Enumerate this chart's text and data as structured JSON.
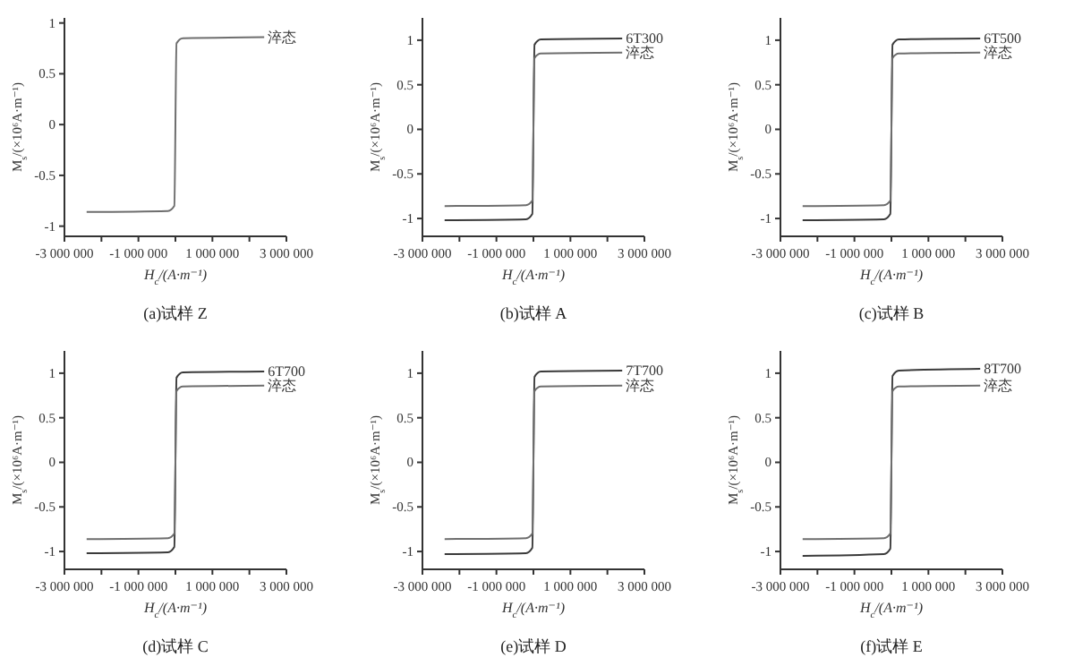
{
  "chart_data": [
    {
      "type": "line",
      "title": "(a)试样 Z",
      "xlabel": "H$_{c}$/(A·m⁻¹)",
      "ylabel": "M$_{s}$/(×10⁶A·m⁻¹)",
      "xlim": [
        -3000000,
        3000000
      ],
      "ylim": [
        -1.1,
        1.05
      ],
      "xticks": [
        {
          "value": -3000000,
          "label": "-3 000 000"
        },
        {
          "value": -2000000,
          "label": null
        },
        {
          "value": -1000000,
          "label": "-1 000 000"
        },
        {
          "value": 0,
          "label": null
        },
        {
          "value": 1000000,
          "label": "1 000 000"
        },
        {
          "value": 2000000,
          "label": null
        },
        {
          "value": 3000000,
          "label": "3 000 000"
        }
      ],
      "yticks": [
        -1,
        -0.5,
        0,
        0.5,
        1
      ],
      "x": [
        -2400000,
        -200000,
        -30000,
        30000,
        200000,
        2400000
      ],
      "series": [
        {
          "name": "淬态",
          "color": "#6e6e6e",
          "values": [
            -0.86,
            -0.85,
            -0.8,
            0.8,
            0.85,
            0.86
          ]
        }
      ]
    },
    {
      "type": "line",
      "title": "(b)试样 A",
      "xlabel": "H$_{c}$/(A·m⁻¹)",
      "ylabel": "M$_{s}$/(×10⁶A·m⁻¹)",
      "xlim": [
        -3000000,
        3000000
      ],
      "ylim": [
        -1.2,
        1.25
      ],
      "xticks": [
        {
          "value": -3000000,
          "label": "-3 000 000"
        },
        {
          "value": -2000000,
          "label": null
        },
        {
          "value": -1000000,
          "label": "-1 000 000"
        },
        {
          "value": 0,
          "label": null
        },
        {
          "value": 1000000,
          "label": "1 000 000"
        },
        {
          "value": 2000000,
          "label": null
        },
        {
          "value": 3000000,
          "label": "3 000 000"
        }
      ],
      "yticks": [
        -1,
        -0.5,
        0,
        0.5,
        1
      ],
      "x": [
        -2400000,
        -200000,
        -30000,
        30000,
        200000,
        2400000
      ],
      "series": [
        {
          "name": "6T300",
          "color": "#3a3a3a",
          "values": [
            -1.02,
            -1.01,
            -0.95,
            0.95,
            1.01,
            1.02
          ]
        },
        {
          "name": "淬态",
          "color": "#6e6e6e",
          "values": [
            -0.86,
            -0.85,
            -0.8,
            0.8,
            0.85,
            0.86
          ]
        }
      ]
    },
    {
      "type": "line",
      "title": "(c)试样 B",
      "xlabel": "H$_{c}$/(A·m⁻¹)",
      "ylabel": "M$_{s}$/(×10⁶A·m⁻¹)",
      "xlim": [
        -3000000,
        3000000
      ],
      "ylim": [
        -1.2,
        1.25
      ],
      "xticks": [
        {
          "value": -3000000,
          "label": "-3 000 000"
        },
        {
          "value": -2000000,
          "label": null
        },
        {
          "value": -1000000,
          "label": "-1 000 000"
        },
        {
          "value": 0,
          "label": null
        },
        {
          "value": 1000000,
          "label": "1 000 000"
        },
        {
          "value": 2000000,
          "label": null
        },
        {
          "value": 3000000,
          "label": "3 000 000"
        }
      ],
      "yticks": [
        -1,
        -0.5,
        0,
        0.5,
        1
      ],
      "x": [
        -2400000,
        -200000,
        -30000,
        30000,
        200000,
        2400000
      ],
      "series": [
        {
          "name": "6T500",
          "color": "#3a3a3a",
          "values": [
            -1.02,
            -1.01,
            -0.95,
            0.95,
            1.01,
            1.02
          ]
        },
        {
          "name": "淬态",
          "color": "#6e6e6e",
          "values": [
            -0.86,
            -0.85,
            -0.8,
            0.8,
            0.85,
            0.86
          ]
        }
      ]
    },
    {
      "type": "line",
      "title": "(d)试样 C",
      "xlabel": "H$_{c}$/(A·m⁻¹)",
      "ylabel": "M$_{s}$/(×10⁶A·m⁻¹)",
      "xlim": [
        -3000000,
        3000000
      ],
      "ylim": [
        -1.2,
        1.25
      ],
      "xticks": [
        {
          "value": -3000000,
          "label": "-3 000 000"
        },
        {
          "value": -2000000,
          "label": null
        },
        {
          "value": -1000000,
          "label": "-1 000 000"
        },
        {
          "value": 0,
          "label": null
        },
        {
          "value": 1000000,
          "label": "1 000 000"
        },
        {
          "value": 2000000,
          "label": null
        },
        {
          "value": 3000000,
          "label": "3 000 000"
        }
      ],
      "yticks": [
        -1,
        -0.5,
        0,
        0.5,
        1
      ],
      "x": [
        -2400000,
        -200000,
        -30000,
        30000,
        200000,
        2400000
      ],
      "series": [
        {
          "name": "6T700",
          "color": "#3a3a3a",
          "values": [
            -1.02,
            -1.01,
            -0.95,
            0.95,
            1.01,
            1.02
          ]
        },
        {
          "name": "淬态",
          "color": "#6e6e6e",
          "values": [
            -0.86,
            -0.85,
            -0.8,
            0.8,
            0.85,
            0.86
          ]
        }
      ]
    },
    {
      "type": "line",
      "title": "(e)试样 D",
      "xlabel": "H$_{c}$/(A·m⁻¹)",
      "ylabel": "M$_{s}$/(×10⁶A·m⁻¹)",
      "xlim": [
        -3000000,
        3000000
      ],
      "ylim": [
        -1.2,
        1.25
      ],
      "xticks": [
        {
          "value": -3000000,
          "label": "-3 000 000"
        },
        {
          "value": -2000000,
          "label": null
        },
        {
          "value": -1000000,
          "label": "-1 000 000"
        },
        {
          "value": 0,
          "label": null
        },
        {
          "value": 1000000,
          "label": "1 000 000"
        },
        {
          "value": 2000000,
          "label": null
        },
        {
          "value": 3000000,
          "label": "3 000 000"
        }
      ],
      "yticks": [
        -1,
        -0.5,
        0,
        0.5,
        1
      ],
      "x": [
        -2400000,
        -200000,
        -30000,
        30000,
        200000,
        2400000
      ],
      "series": [
        {
          "name": "7T700",
          "color": "#3a3a3a",
          "values": [
            -1.03,
            -1.02,
            -0.96,
            0.96,
            1.02,
            1.03
          ]
        },
        {
          "name": "淬态",
          "color": "#6e6e6e",
          "values": [
            -0.86,
            -0.85,
            -0.8,
            0.8,
            0.85,
            0.86
          ]
        }
      ]
    },
    {
      "type": "line",
      "title": "(f)试样 E",
      "xlabel": "H$_{c}$/(A·m⁻¹)",
      "ylabel": "M$_{s}$/(×10⁶A·m⁻¹)",
      "xlim": [
        -3000000,
        3000000
      ],
      "ylim": [
        -1.2,
        1.25
      ],
      "xticks": [
        {
          "value": -3000000,
          "label": "-3 000 000"
        },
        {
          "value": -2000000,
          "label": null
        },
        {
          "value": -1000000,
          "label": "-1 000 000"
        },
        {
          "value": 0,
          "label": null
        },
        {
          "value": 1000000,
          "label": "1 000 000"
        },
        {
          "value": 2000000,
          "label": null
        },
        {
          "value": 3000000,
          "label": "3 000 000"
        }
      ],
      "yticks": [
        -1,
        -0.5,
        0,
        0.5,
        1
      ],
      "x": [
        -2400000,
        -200000,
        -30000,
        30000,
        200000,
        2400000
      ],
      "series": [
        {
          "name": "8T700",
          "color": "#3a3a3a",
          "values": [
            -1.05,
            -1.03,
            -0.97,
            0.97,
            1.03,
            1.05
          ]
        },
        {
          "name": "淬态",
          "color": "#6e6e6e",
          "values": [
            -0.86,
            -0.85,
            -0.8,
            0.8,
            0.85,
            0.86
          ]
        }
      ]
    }
  ]
}
